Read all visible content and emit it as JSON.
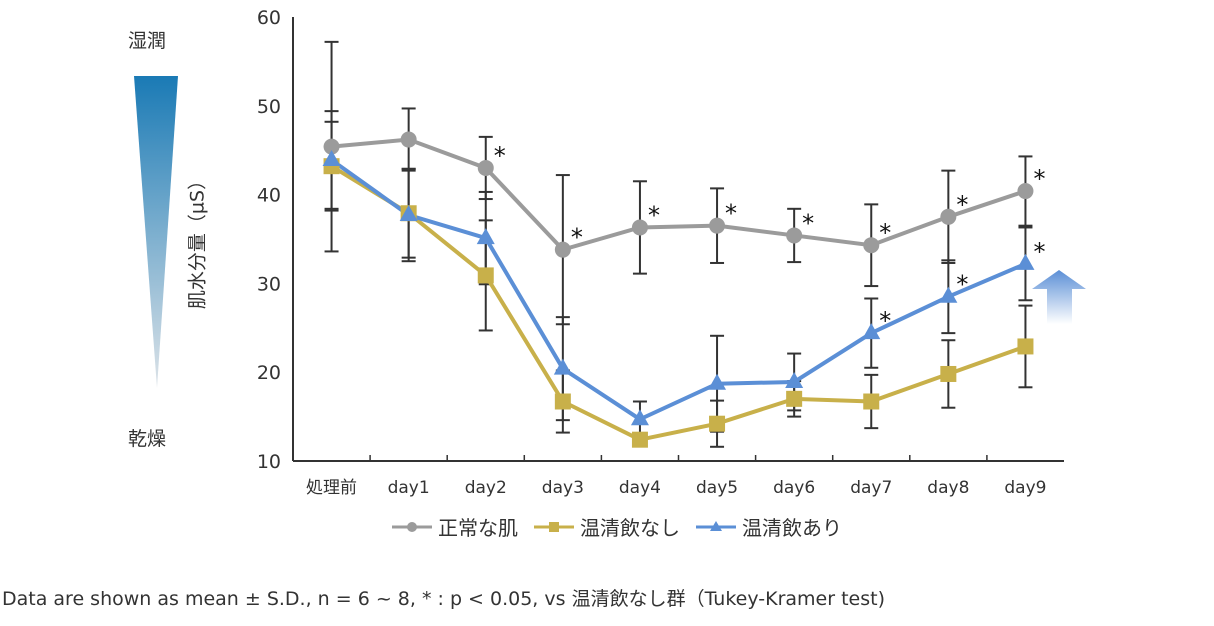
{
  "chart_data": {
    "type": "line",
    "title": "",
    "xlabel": "",
    "ylabel": "肌水分量（µS）",
    "ylim": [
      10,
      60
    ],
    "yticks": [
      10,
      20,
      30,
      40,
      50,
      60
    ],
    "categories": [
      "処理前",
      "day1",
      "day2",
      "day3",
      "day4",
      "day5",
      "day6",
      "day7",
      "day8",
      "day9"
    ],
    "legend_position": "bottom",
    "grid": false,
    "series": [
      {
        "name": "正常な肌",
        "color": "#9b9b9b",
        "marker": "circle",
        "values": [
          45.4,
          46.2,
          43.0,
          33.8,
          36.3,
          36.5,
          35.4,
          34.3,
          37.5,
          40.4
        ],
        "sd": [
          11.8,
          3.5,
          3.5,
          8.4,
          5.2,
          4.2,
          3.0,
          4.6,
          5.2,
          3.9
        ],
        "significant": [
          false,
          false,
          true,
          true,
          true,
          true,
          true,
          true,
          true,
          true
        ]
      },
      {
        "name": "温清飲なし",
        "color": "#c8b04a",
        "marker": "square",
        "values": [
          43.2,
          37.9,
          30.9,
          16.7,
          12.4,
          14.2,
          17.0,
          16.7,
          19.8,
          22.9
        ],
        "sd": [
          5.0,
          5.0,
          6.2,
          3.5,
          0,
          2.6,
          2.0,
          3.0,
          3.8,
          4.6
        ],
        "significant": [
          false,
          false,
          false,
          false,
          false,
          false,
          false,
          false,
          false,
          false
        ]
      },
      {
        "name": "温清飲あり",
        "color": "#5b8fd6",
        "marker": "triangle",
        "values": [
          43.9,
          37.7,
          35.1,
          20.4,
          14.7,
          18.7,
          18.9,
          24.4,
          28.5,
          32.2
        ],
        "sd": [
          5.5,
          5.2,
          5.2,
          5.8,
          2.0,
          5.4,
          3.2,
          3.9,
          4.1,
          4.1
        ],
        "significant": [
          false,
          false,
          false,
          false,
          false,
          false,
          false,
          true,
          true,
          true
        ]
      }
    ],
    "significance_mark": "*"
  },
  "side": {
    "top_label": "湿潤",
    "bottom_label": "乾燥"
  },
  "footnote": "Data are shown as mean ± S.D., n = 6 ~ 8, * : p < 0.05, vs 温清飲なし群（Tukey-Kramer test)"
}
